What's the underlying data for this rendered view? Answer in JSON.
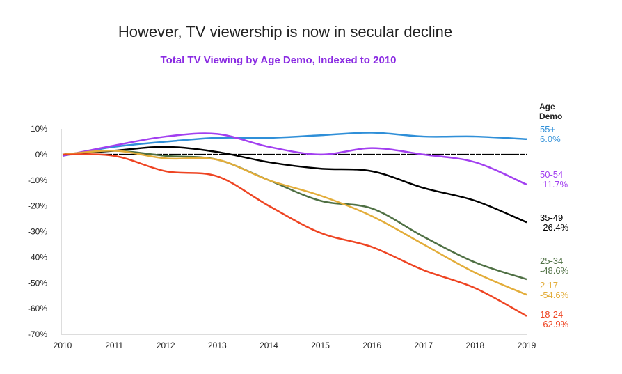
{
  "title": "However, TV viewership is now in secular decline",
  "chart_data": {
    "type": "line",
    "title": "Total TV Viewing by Age Demo, Indexed to 2010",
    "xlabel": "",
    "ylabel": "",
    "x": [
      2010,
      2011,
      2012,
      2013,
      2014,
      2015,
      2016,
      2017,
      2018,
      2019
    ],
    "x_tick_labels": [
      "2010",
      "2011",
      "2012",
      "2013",
      "2014",
      "2015",
      "2016",
      "2017",
      "2018",
      "2019"
    ],
    "ylim": [
      -70,
      10
    ],
    "y_tick_labels": [
      "10%",
      "0%",
      "-10%",
      "-20%",
      "-30%",
      "-40%",
      "-50%",
      "-60%",
      "-70%"
    ],
    "y_ticks": [
      10,
      0,
      -10,
      -20,
      -30,
      -40,
      -50,
      -60,
      -70
    ],
    "legend_title_line1": "Age",
    "legend_title_line2": "Demo",
    "legend_placement": "right",
    "reference_line": 0,
    "series": [
      {
        "name": "55+",
        "end_label": "6.0%",
        "color": "#2f8fd8",
        "values": [
          -0.5,
          3,
          5,
          6.5,
          6.5,
          7.5,
          8.5,
          7,
          7,
          6.0
        ]
      },
      {
        "name": "50-54",
        "end_label": "-11.7%",
        "color": "#a23ff0",
        "values": [
          -0.5,
          3.5,
          7,
          8,
          3,
          0,
          2.5,
          0,
          -3,
          -11.7
        ]
      },
      {
        "name": "35-49",
        "end_label": "-26.4%",
        "color": "#000000",
        "values": [
          0,
          1.5,
          3,
          1,
          -3,
          -5.5,
          -6.5,
          -13,
          -18,
          -26.4
        ]
      },
      {
        "name": "25-34",
        "end_label": "-48.6%",
        "color": "#4f7044",
        "values": [
          0,
          1.5,
          -0.5,
          -2,
          -10,
          -18,
          -21,
          -32,
          -42,
          -48.6
        ]
      },
      {
        "name": "2-17",
        "end_label": "-54.6%",
        "color": "#e3ad3a",
        "values": [
          0,
          1.5,
          -1.5,
          -2,
          -10,
          -16,
          -24,
          -35,
          -46,
          -54.6
        ]
      },
      {
        "name": "18-24",
        "end_label": "-62.9%",
        "color": "#ee4422",
        "values": [
          0,
          -0.5,
          -6.5,
          -8.5,
          -20,
          -30.5,
          -36,
          -45,
          -52,
          -62.9
        ]
      }
    ]
  }
}
